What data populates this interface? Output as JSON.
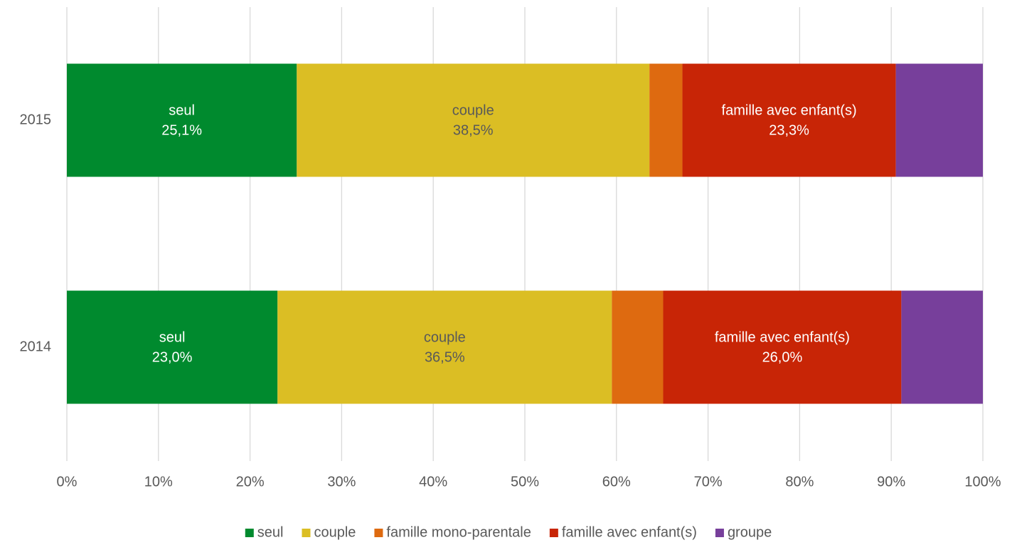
{
  "chart_data": {
    "type": "bar",
    "orientation": "horizontal",
    "stacked": "percent",
    "categories": [
      "2015",
      "2014"
    ],
    "series": [
      {
        "name": "seul",
        "values": [
          25.1,
          23.0
        ],
        "labels": [
          "25,1%",
          "23,0%"
        ],
        "color": "#008A2E",
        "label_color": "#ffffff"
      },
      {
        "name": "couple",
        "values": [
          38.5,
          36.5
        ],
        "labels": [
          "38,5%",
          "36,5%"
        ],
        "color": "#DBBE24",
        "label_color": "#595959"
      },
      {
        "name": "famille mono-parentale",
        "values": [
          3.6,
          5.6
        ],
        "labels": [
          null,
          null
        ],
        "color": "#DE6A10",
        "label_color": "#ffffff"
      },
      {
        "name": "famille avec  enfant(s)",
        "values": [
          23.3,
          26.0
        ],
        "labels": [
          "23,3%",
          "26,0%"
        ],
        "color": "#C82506",
        "label_color": "#ffffff"
      },
      {
        "name": "groupe",
        "values": [
          9.5,
          8.9
        ],
        "labels": [
          null,
          null
        ],
        "color": "#773F9B",
        "label_color": "#ffffff"
      }
    ],
    "x_ticks": [
      "0%",
      "10%",
      "20%",
      "30%",
      "40%",
      "50%",
      "60%",
      "70%",
      "80%",
      "90%",
      "100%"
    ],
    "xlim": [
      0,
      100
    ],
    "grid": true,
    "legend_position": "bottom",
    "title": "",
    "xlabel": "",
    "ylabel": ""
  }
}
